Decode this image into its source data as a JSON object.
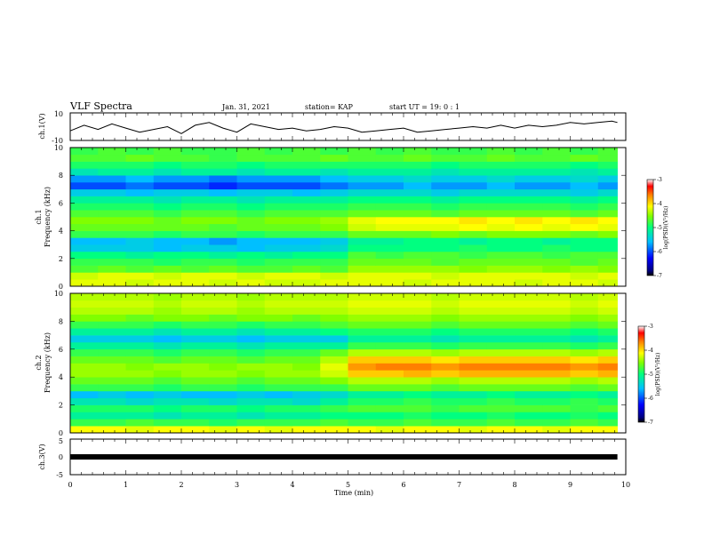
{
  "header": {
    "title": "VLF Spectra",
    "date": "Jan. 31, 2021",
    "station": "station= KAP",
    "start": "start  UT =   19: 0  : 1"
  },
  "chart_data": [
    {
      "type": "line",
      "ylabel": "ch.1(V)",
      "ylim": [
        -10,
        10
      ],
      "ytick_labels": [
        "10",
        "-10"
      ],
      "xlim": [
        0,
        10
      ],
      "series": [
        {
          "x": [
            0,
            0.25,
            0.5,
            0.75,
            1.0,
            1.25,
            1.5,
            1.75,
            2.0,
            2.25,
            2.5,
            2.75,
            3.0,
            3.25,
            3.5,
            3.75,
            4.0,
            4.25,
            4.5,
            4.75,
            5.0,
            5.25,
            5.5,
            5.75,
            6.0,
            6.25,
            6.5,
            6.75,
            7.0,
            7.25,
            7.5,
            7.75,
            8.0,
            8.25,
            8.5,
            8.75,
            9.0,
            9.25,
            9.5,
            9.75,
            9.85
          ],
          "values": [
            -3,
            1,
            -2,
            2,
            -1,
            -4,
            -2,
            0,
            -5,
            1,
            3,
            -1,
            -4,
            2,
            0,
            -2,
            -1,
            -3,
            -2,
            0,
            -1,
            -4,
            -3,
            -2,
            -1,
            -4,
            -3,
            -2,
            -1,
            0,
            -1,
            1,
            -1,
            1,
            0,
            1,
            3,
            2,
            3,
            4,
            3
          ]
        }
      ]
    },
    {
      "type": "heatmap",
      "ylabel_line1": "ch.1",
      "ylabel_line2": "Frequency (kHz)",
      "ylim": [
        0,
        10
      ],
      "yticks": [
        0,
        2,
        4,
        6,
        8,
        10
      ],
      "xlim": [
        0,
        10
      ],
      "colorbar": {
        "label": "log(PSD)(V²/Hz)",
        "ticks": [
          -3,
          -4,
          -5,
          -6,
          -7
        ],
        "range": [
          -7,
          -3
        ]
      },
      "freq_kHz": [
        0.25,
        0.75,
        1.25,
        1.75,
        2.25,
        2.75,
        3.25,
        3.75,
        4.25,
        4.75,
        5.25,
        5.75,
        6.25,
        6.75,
        7.25,
        7.75,
        8.25,
        8.75,
        9.25,
        9.75
      ],
      "time_min": [
        0.25,
        0.75,
        1.25,
        1.75,
        2.25,
        2.75,
        3.25,
        3.75,
        4.25,
        4.75,
        5.25,
        5.75,
        6.25,
        6.75,
        7.25,
        7.75,
        8.25,
        8.75,
        9.25,
        9.75
      ],
      "log_psd_by_freq": [
        [
          -4.6,
          -4.6,
          -4.7,
          -4.6,
          -4.6,
          -4.7,
          -4.6,
          -4.7,
          -4.7,
          -4.6,
          -4.6,
          -4.6,
          -4.7,
          -4.6,
          -4.6,
          -4.6,
          -4.7,
          -4.6,
          -4.6,
          -4.7
        ],
        [
          -4.7,
          -4.6,
          -4.6,
          -4.7,
          -4.6,
          -4.6,
          -4.7,
          -4.6,
          -4.6,
          -4.7,
          -4.6,
          -4.6,
          -4.6,
          -4.7,
          -4.6,
          -4.6,
          -4.6,
          -4.6,
          -4.7,
          -4.6
        ],
        [
          -5.2,
          -5.1,
          -5.2,
          -5.1,
          -5.2,
          -5.1,
          -5.2,
          -5.2,
          -5.1,
          -5.2,
          -4.9,
          -4.9,
          -4.9,
          -4.9,
          -5.0,
          -4.9,
          -4.9,
          -5.0,
          -4.9,
          -5.0
        ],
        [
          -5.3,
          -5.3,
          -5.3,
          -5.4,
          -5.3,
          -5.3,
          -5.4,
          -5.3,
          -5.3,
          -5.3,
          -5.1,
          -5.1,
          -5.1,
          -5.2,
          -5.1,
          -5.1,
          -5.1,
          -5.1,
          -5.2,
          -5.1
        ],
        [
          -5.5,
          -5.5,
          -5.6,
          -5.5,
          -5.5,
          -5.6,
          -5.5,
          -5.6,
          -5.5,
          -5.5,
          -5.2,
          -5.3,
          -5.2,
          -5.2,
          -5.3,
          -5.2,
          -5.2,
          -5.3,
          -5.2,
          -5.2
        ],
        [
          -5.9,
          -5.9,
          -5.9,
          -6.0,
          -5.9,
          -5.9,
          -6.0,
          -5.9,
          -5.9,
          -5.8,
          -5.5,
          -5.5,
          -5.5,
          -5.5,
          -5.4,
          -5.5,
          -5.5,
          -5.4,
          -5.5,
          -5.5
        ],
        [
          -6.0,
          -6.0,
          -5.9,
          -6.0,
          -6.0,
          -6.1,
          -6.0,
          -6.0,
          -6.0,
          -5.9,
          -5.6,
          -5.6,
          -5.5,
          -5.5,
          -5.6,
          -5.5,
          -5.5,
          -5.6,
          -5.5,
          -5.5
        ],
        [
          -5.3,
          -5.3,
          -5.3,
          -5.4,
          -5.3,
          -5.3,
          -5.4,
          -5.3,
          -5.3,
          -5.3,
          -5.1,
          -5.1,
          -5.1,
          -5.0,
          -5.1,
          -5.0,
          -5.0,
          -5.0,
          -5.1,
          -5.0
        ],
        [
          -5.1,
          -5.1,
          -5.1,
          -5.1,
          -5.1,
          -5.2,
          -5.1,
          -5.1,
          -5.1,
          -5.0,
          -4.7,
          -4.6,
          -4.6,
          -4.6,
          -4.5,
          -4.6,
          -4.5,
          -4.6,
          -4.5,
          -4.6
        ],
        [
          -5.0,
          -5.0,
          -5.0,
          -5.1,
          -5.0,
          -5.0,
          -5.1,
          -5.0,
          -5.0,
          -4.9,
          -4.6,
          -4.5,
          -4.5,
          -4.5,
          -4.4,
          -4.5,
          -4.4,
          -4.5,
          -4.4,
          -4.5
        ],
        [
          -5.2,
          -5.2,
          -5.2,
          -5.3,
          -5.2,
          -5.2,
          -5.3,
          -5.2,
          -5.2,
          -5.2,
          -5.1,
          -5.1,
          -5.1,
          -5.2,
          -5.1,
          -5.1,
          -5.1,
          -5.1,
          -5.2,
          -5.1
        ],
        [
          -5.4,
          -5.4,
          -5.4,
          -5.5,
          -5.4,
          -5.4,
          -5.5,
          -5.4,
          -5.4,
          -5.4,
          -5.3,
          -5.3,
          -5.3,
          -5.4,
          -5.3,
          -5.3,
          -5.3,
          -5.3,
          -5.4,
          -5.3
        ],
        [
          -5.6,
          -5.6,
          -5.6,
          -5.7,
          -5.6,
          -5.6,
          -5.7,
          -5.6,
          -5.6,
          -5.6,
          -5.5,
          -5.5,
          -5.5,
          -5.6,
          -5.5,
          -5.5,
          -5.5,
          -5.5,
          -5.6,
          -5.5
        ],
        [
          -5.9,
          -5.9,
          -6.0,
          -5.9,
          -5.9,
          -6.0,
          -5.9,
          -5.9,
          -6.0,
          -5.9,
          -5.8,
          -5.8,
          -5.8,
          -5.9,
          -5.8,
          -5.8,
          -5.8,
          -5.8,
          -5.9,
          -5.8
        ],
        [
          -6.3,
          -6.3,
          -6.2,
          -6.3,
          -6.3,
          -6.4,
          -6.3,
          -6.3,
          -6.3,
          -6.2,
          -6.1,
          -6.1,
          -6.0,
          -6.1,
          -6.1,
          -6.0,
          -6.1,
          -6.1,
          -6.0,
          -6.1
        ],
        [
          -6.1,
          -6.1,
          -6.0,
          -6.1,
          -6.1,
          -6.2,
          -6.1,
          -6.1,
          -6.1,
          -6.0,
          -5.9,
          -5.9,
          -5.8,
          -5.9,
          -5.9,
          -5.8,
          -5.9,
          -5.9,
          -5.8,
          -5.9
        ],
        [
          -5.7,
          -5.6,
          -5.6,
          -5.7,
          -5.6,
          -5.6,
          -5.7,
          -5.6,
          -5.6,
          -5.7,
          -5.6,
          -5.6,
          -5.6,
          -5.7,
          -5.6,
          -5.6,
          -5.6,
          -5.6,
          -5.7,
          -5.6
        ],
        [
          -5.4,
          -5.4,
          -5.4,
          -5.5,
          -5.4,
          -5.4,
          -5.5,
          -5.4,
          -5.4,
          -5.4,
          -5.4,
          -5.4,
          -5.4,
          -5.5,
          -5.4,
          -5.4,
          -5.4,
          -5.4,
          -5.5,
          -5.4
        ],
        [
          -5.2,
          -5.2,
          -5.1,
          -5.2,
          -5.2,
          -5.3,
          -5.2,
          -5.2,
          -5.2,
          -5.1,
          -5.2,
          -5.2,
          -5.1,
          -5.2,
          -5.2,
          -5.1,
          -5.2,
          -5.2,
          -5.1,
          -5.2
        ],
        [
          -5.3,
          -5.2,
          -5.3,
          -5.2,
          -5.3,
          -5.3,
          -5.2,
          -5.3,
          -5.2,
          -5.3,
          -5.2,
          -5.3,
          -5.2,
          -5.3,
          -5.3,
          -5.2,
          -5.3,
          -5.2,
          -5.3,
          -5.2
        ]
      ]
    },
    {
      "type": "heatmap",
      "ylabel_line1": "ch.2",
      "ylabel_line2": "Frequency (kHz)",
      "ylim": [
        0,
        10
      ],
      "yticks": [
        0,
        2,
        4,
        6,
        8,
        10
      ],
      "xlim": [
        0,
        10
      ],
      "colorbar": {
        "label": "log(PSD)(V²/Hz)",
        "ticks": [
          -3,
          -4,
          -5,
          -6,
          -7
        ],
        "range": [
          -7,
          -3
        ]
      },
      "freq_kHz": [
        0.25,
        0.75,
        1.25,
        1.75,
        2.25,
        2.75,
        3.25,
        3.75,
        4.25,
        4.75,
        5.25,
        5.75,
        6.25,
        6.75,
        7.25,
        7.75,
        8.25,
        8.75,
        9.25,
        9.75
      ],
      "time_min": [
        0.25,
        0.75,
        1.25,
        1.75,
        2.25,
        2.75,
        3.25,
        3.75,
        4.25,
        4.75,
        5.25,
        5.75,
        6.25,
        6.75,
        7.25,
        7.75,
        8.25,
        8.75,
        9.25,
        9.75
      ],
      "log_psd_by_freq": [
        [
          -4.5,
          -4.5,
          -4.6,
          -4.5,
          -4.5,
          -4.6,
          -4.5,
          -4.6,
          -4.5,
          -4.5,
          -4.5,
          -4.6,
          -4.5,
          -4.5,
          -4.6,
          -4.5,
          -4.5,
          -4.6,
          -4.5,
          -4.5
        ],
        [
          -5.3,
          -5.3,
          -5.2,
          -5.3,
          -5.3,
          -5.4,
          -5.3,
          -5.3,
          -5.3,
          -5.2,
          -5.3,
          -5.3,
          -5.2,
          -5.3,
          -5.3,
          -5.2,
          -5.3,
          -5.3,
          -5.2,
          -5.3
        ],
        [
          -5.6,
          -5.6,
          -5.6,
          -5.7,
          -5.6,
          -5.6,
          -5.7,
          -5.6,
          -5.6,
          -5.5,
          -5.5,
          -5.5,
          -5.4,
          -5.5,
          -5.5,
          -5.4,
          -5.5,
          -5.5,
          -5.4,
          -5.5
        ],
        [
          -5.4,
          -5.4,
          -5.4,
          -5.5,
          -5.4,
          -5.4,
          -5.5,
          -5.4,
          -5.4,
          -5.3,
          -5.2,
          -5.2,
          -5.2,
          -5.3,
          -5.2,
          -5.2,
          -5.2,
          -5.2,
          -5.3,
          -5.2
        ],
        [
          -5.7,
          -5.7,
          -5.8,
          -5.7,
          -5.7,
          -5.8,
          -5.7,
          -5.7,
          -5.8,
          -5.6,
          -5.4,
          -5.4,
          -5.3,
          -5.4,
          -5.4,
          -5.3,
          -5.4,
          -5.4,
          -5.3,
          -5.4
        ],
        [
          -6.0,
          -5.9,
          -6.0,
          -5.9,
          -6.0,
          -6.0,
          -5.9,
          -6.0,
          -5.9,
          -5.8,
          -5.6,
          -5.6,
          -5.5,
          -5.6,
          -5.6,
          -5.5,
          -5.6,
          -5.6,
          -5.5,
          -5.6
        ],
        [
          -5.3,
          -5.3,
          -5.3,
          -5.4,
          -5.3,
          -5.3,
          -5.4,
          -5.3,
          -5.3,
          -5.3,
          -5.1,
          -5.1,
          -5.1,
          -5.2,
          -5.1,
          -5.1,
          -5.1,
          -5.1,
          -5.2,
          -5.1
        ],
        [
          -5.1,
          -5.1,
          -5.1,
          -5.2,
          -5.1,
          -5.1,
          -5.2,
          -5.1,
          -5.1,
          -5.0,
          -4.8,
          -4.8,
          -4.8,
          -4.9,
          -4.8,
          -4.8,
          -4.8,
          -4.8,
          -4.9,
          -4.8
        ],
        [
          -4.9,
          -4.9,
          -4.9,
          -5.0,
          -4.9,
          -4.9,
          -5.0,
          -4.9,
          -4.9,
          -4.7,
          -4.3,
          -4.3,
          -4.2,
          -4.3,
          -4.2,
          -4.2,
          -4.2,
          -4.2,
          -4.3,
          -4.2
        ],
        [
          -4.9,
          -4.9,
          -5.0,
          -4.9,
          -4.9,
          -5.0,
          -4.9,
          -4.9,
          -5.0,
          -4.6,
          -4.1,
          -4.0,
          -4.0,
          -4.1,
          -4.0,
          -4.0,
          -4.0,
          -4.0,
          -4.1,
          -4.0
        ],
        [
          -5.1,
          -5.1,
          -5.1,
          -5.2,
          -5.1,
          -5.1,
          -5.2,
          -5.1,
          -5.1,
          -4.8,
          -4.3,
          -4.3,
          -4.3,
          -4.4,
          -4.3,
          -4.3,
          -4.3,
          -4.3,
          -4.4,
          -4.3
        ],
        [
          -5.3,
          -5.3,
          -5.3,
          -5.4,
          -5.3,
          -5.3,
          -5.4,
          -5.3,
          -5.3,
          -5.1,
          -4.8,
          -4.8,
          -4.8,
          -4.9,
          -4.8,
          -4.8,
          -4.8,
          -4.8,
          -4.9,
          -4.8
        ],
        [
          -5.6,
          -5.6,
          -5.6,
          -5.7,
          -5.6,
          -5.6,
          -5.7,
          -5.6,
          -5.6,
          -5.6,
          -5.3,
          -5.3,
          -5.3,
          -5.4,
          -5.3,
          -5.3,
          -5.3,
          -5.3,
          -5.4,
          -5.3
        ],
        [
          -5.9,
          -5.9,
          -5.9,
          -6.0,
          -5.9,
          -5.9,
          -6.0,
          -5.9,
          -5.9,
          -5.9,
          -5.6,
          -5.6,
          -5.6,
          -5.7,
          -5.6,
          -5.6,
          -5.6,
          -5.6,
          -5.7,
          -5.6
        ],
        [
          -5.6,
          -5.6,
          -5.6,
          -5.7,
          -5.6,
          -5.6,
          -5.7,
          -5.6,
          -5.6,
          -5.5,
          -5.4,
          -5.4,
          -5.4,
          -5.5,
          -5.4,
          -5.4,
          -5.4,
          -5.4,
          -5.5,
          -5.4
        ],
        [
          -5.3,
          -5.3,
          -5.3,
          -5.4,
          -5.3,
          -5.3,
          -5.4,
          -5.3,
          -5.3,
          -5.2,
          -5.1,
          -5.1,
          -5.1,
          -5.2,
          -5.1,
          -5.1,
          -5.1,
          -5.1,
          -5.2,
          -5.1
        ],
        [
          -5.0,
          -5.0,
          -5.1,
          -5.0,
          -5.0,
          -5.1,
          -5.0,
          -5.0,
          -5.1,
          -5.0,
          -4.9,
          -4.9,
          -4.9,
          -5.0,
          -4.9,
          -4.9,
          -4.9,
          -4.9,
          -5.0,
          -4.9
        ],
        [
          -4.8,
          -4.8,
          -4.8,
          -4.9,
          -4.8,
          -4.8,
          -4.9,
          -4.8,
          -4.8,
          -4.8,
          -4.7,
          -4.7,
          -4.7,
          -4.8,
          -4.7,
          -4.7,
          -4.7,
          -4.7,
          -4.8,
          -4.7
        ],
        [
          -4.7,
          -4.7,
          -4.7,
          -4.8,
          -4.7,
          -4.7,
          -4.8,
          -4.7,
          -4.7,
          -4.7,
          -4.6,
          -4.6,
          -4.6,
          -4.7,
          -4.6,
          -4.6,
          -4.6,
          -4.6,
          -4.7,
          -4.6
        ],
        [
          -4.8,
          -4.8,
          -4.8,
          -4.9,
          -4.8,
          -4.8,
          -4.9,
          -4.8,
          -4.8,
          -4.8,
          -4.7,
          -4.7,
          -4.7,
          -4.8,
          -4.7,
          -4.7,
          -4.7,
          -4.7,
          -4.8,
          -4.7
        ]
      ]
    },
    {
      "type": "line",
      "ylabel": "ch.3(V)",
      "ylim": [
        -5,
        5
      ],
      "ytick_labels": [
        "5",
        "0",
        "-5"
      ],
      "xlim": [
        0,
        10
      ],
      "series": [
        {
          "x": [
            0,
            9.85
          ],
          "values": [
            0,
            0
          ]
        }
      ]
    }
  ],
  "x_axis": {
    "label": "Time  (min)",
    "tick_labels": [
      "0",
      "1",
      "2",
      "3",
      "4",
      "5",
      "6",
      "7",
      "8",
      "9",
      "10"
    ]
  },
  "colors": {
    "colormap": [
      "#000080",
      "#0000ff",
      "#00bfff",
      "#00ff80",
      "#80ff00",
      "#ffff00",
      "#ff8000",
      "#ff0000",
      "#ffffff"
    ],
    "trace": "#000000"
  }
}
